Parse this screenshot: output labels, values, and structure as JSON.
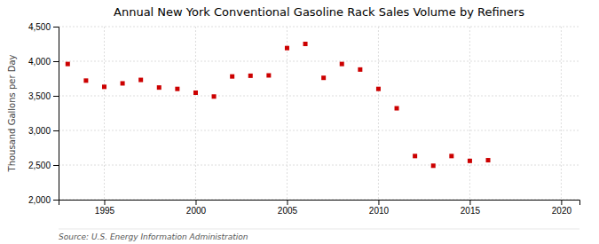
{
  "chart_data": {
    "type": "scatter",
    "title": "Annual New York Conventional Gasoline Rack Sales Volume by Refiners",
    "ylabel": "Thousand Gallons per Day",
    "annotations": [
      "Source: U.S. Energy Information Administration"
    ],
    "color": "#cc0000",
    "marker": "square",
    "grid": true,
    "xlim": [
      1992.5,
      2021
    ],
    "ylim": [
      2000,
      4500
    ],
    "xticks": [
      1995,
      2000,
      2005,
      2010,
      2015,
      2020
    ],
    "yticks": [
      {
        "value": 2000,
        "label": "2,000"
      },
      {
        "value": 2500,
        "label": "2,500"
      },
      {
        "value": 3000,
        "label": "3,000"
      },
      {
        "value": 3500,
        "label": "3,500"
      },
      {
        "value": 4000,
        "label": "4,000"
      },
      {
        "value": 4500,
        "label": "4,500"
      }
    ],
    "x": [
      1993,
      1994,
      1995,
      1996,
      1997,
      1998,
      1999,
      2000,
      2001,
      2002,
      2003,
      2004,
      2005,
      2006,
      2007,
      2008,
      2009,
      2010,
      2011,
      2012,
      2013,
      2014,
      2015,
      2016
    ],
    "values": [
      3960,
      3720,
      3630,
      3680,
      3730,
      3620,
      3600,
      3545,
      3490,
      3780,
      3790,
      3795,
      4190,
      4250,
      3760,
      3960,
      3880,
      3600,
      3320,
      2630,
      2490,
      2630,
      2560,
      2570
    ]
  }
}
